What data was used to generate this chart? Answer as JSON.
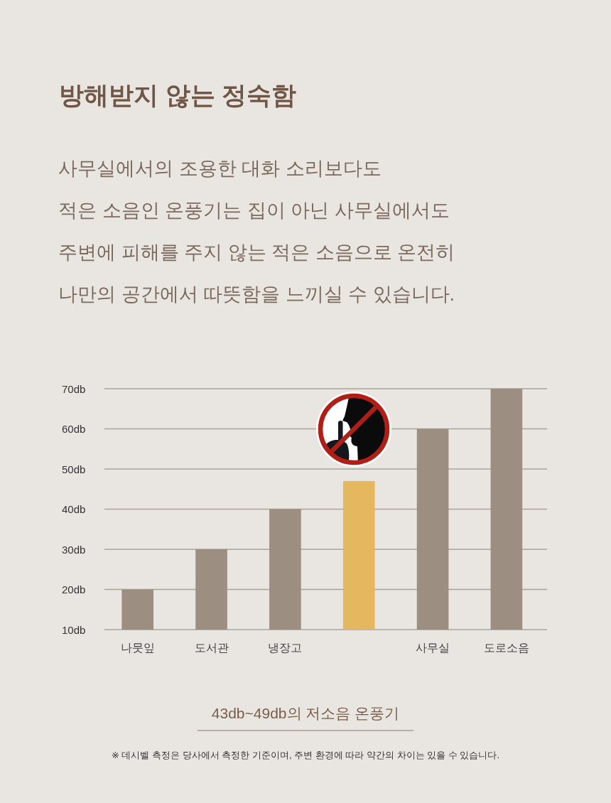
{
  "chart_data": {
    "type": "bar",
    "title": "방해받지 않는 정숙함",
    "subtitle": "사무실에서의 조용한 대화 소리보다도\n적은 소음인 온풍기는 집이 아닌 사무실에서도\n주변에 피해를 주지 않는 적은 소음으로 온전히\n나만의 공간에서 따뜻함을 느끼실 수 있습니다.",
    "categories": [
      "나뭇잎",
      "도서관",
      "냉장고",
      null,
      "사무실",
      "도로소음"
    ],
    "values": [
      20,
      30,
      40,
      47,
      60,
      70
    ],
    "colors": [
      "#9c8e80",
      "#9c8e80",
      "#9c8e80",
      "#e5b75e",
      "#9c8e80",
      "#9c8e80"
    ],
    "ylim": [
      10,
      70
    ],
    "yticks": [
      {
        "value": 10,
        "label": "10db"
      },
      {
        "value": 20,
        "label": "20db"
      },
      {
        "value": 30,
        "label": "30db"
      },
      {
        "value": 40,
        "label": "40db"
      },
      {
        "value": 50,
        "label": "50db"
      },
      {
        "value": 60,
        "label": "60db"
      },
      {
        "value": 70,
        "label": "70db"
      }
    ],
    "grid": "y",
    "annotations": [
      "43db~49db의 저소음 온풍기",
      "※ 데시벨 측정은 당사에서 측정한 기준이며, 주변 환경에 따라 약간의 차이는 있을 수 있습니다."
    ]
  }
}
